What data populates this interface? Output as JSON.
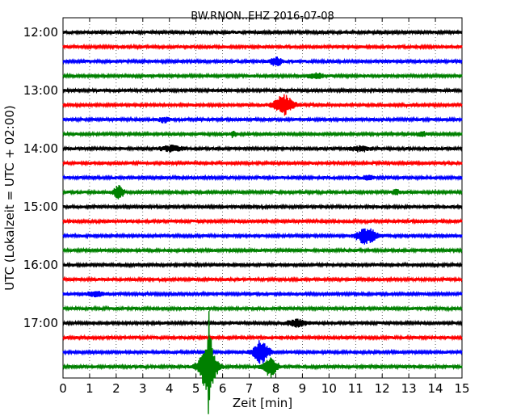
{
  "chart_data": {
    "type": "line",
    "title": "BW.RNON..EHZ 2016-07-08",
    "xlabel": "Zeit  [min]",
    "ylabel": "UTC (Lokalzeit = UTC + 02:00)",
    "xlim": [
      0,
      15
    ],
    "x_ticks": [
      0,
      1,
      2,
      3,
      4,
      5,
      6,
      7,
      8,
      9,
      10,
      11,
      12,
      13,
      14,
      15
    ],
    "x_grid": "dotted",
    "y_ticks": [
      "12:00",
      "13:00",
      "14:00",
      "15:00",
      "16:00",
      "17:00"
    ],
    "line_interval_min": 15,
    "trace_colors": [
      "#000000",
      "#ff0000",
      "#0000ff",
      "#008000"
    ],
    "noise_level": 0.25,
    "series": [
      {
        "start": "12:00",
        "events": []
      },
      {
        "start": "12:15",
        "events": []
      },
      {
        "start": "12:30",
        "events": [
          {
            "t": 8.0,
            "amp": 0.6,
            "dur": 0.3
          }
        ]
      },
      {
        "start": "12:45",
        "events": [
          {
            "t": 9.5,
            "amp": 0.35,
            "dur": 0.4
          }
        ]
      },
      {
        "start": "13:00",
        "events": []
      },
      {
        "start": "13:15",
        "events": [
          {
            "t": 8.3,
            "amp": 1.3,
            "dur": 0.5
          }
        ]
      },
      {
        "start": "13:30",
        "events": [
          {
            "t": 3.8,
            "amp": 0.3,
            "dur": 0.3
          }
        ]
      },
      {
        "start": "13:45",
        "events": [
          {
            "t": 6.4,
            "amp": 0.45,
            "dur": 0.15
          },
          {
            "t": 13.5,
            "amp": 0.35,
            "dur": 0.2
          }
        ]
      },
      {
        "start": "14:00",
        "events": [
          {
            "t": 4.1,
            "amp": 0.35,
            "dur": 0.6
          },
          {
            "t": 11.2,
            "amp": 0.3,
            "dur": 0.5
          }
        ]
      },
      {
        "start": "14:15",
        "events": []
      },
      {
        "start": "14:30",
        "events": [
          {
            "t": 11.5,
            "amp": 0.3,
            "dur": 0.3
          }
        ]
      },
      {
        "start": "14:45",
        "events": [
          {
            "t": 2.1,
            "amp": 0.9,
            "dur": 0.25
          },
          {
            "t": 12.5,
            "amp": 0.3,
            "dur": 0.2
          }
        ]
      },
      {
        "start": "15:00",
        "events": []
      },
      {
        "start": "15:15",
        "events": []
      },
      {
        "start": "15:30",
        "events": [
          {
            "t": 11.4,
            "amp": 1.1,
            "dur": 0.5
          }
        ]
      },
      {
        "start": "15:45",
        "events": []
      },
      {
        "start": "16:00",
        "events": []
      },
      {
        "start": "16:15",
        "events": []
      },
      {
        "start": "16:30",
        "events": [
          {
            "t": 1.2,
            "amp": 0.35,
            "dur": 0.4
          }
        ]
      },
      {
        "start": "16:45",
        "events": []
      },
      {
        "start": "17:00",
        "events": [
          {
            "t": 8.8,
            "amp": 0.45,
            "dur": 0.5
          }
        ]
      },
      {
        "start": "17:15",
        "events": []
      },
      {
        "start": "17:30",
        "events": [
          {
            "t": 7.45,
            "amp": 1.6,
            "dur": 0.4
          }
        ]
      },
      {
        "start": "17:45",
        "events": [
          {
            "t": 5.45,
            "amp": 3.2,
            "dur": 0.45
          },
          {
            "t": 5.5,
            "amp": 5.0,
            "dur": 0.08
          },
          {
            "t": 7.8,
            "amp": 1.3,
            "dur": 0.35
          }
        ]
      }
    ]
  }
}
